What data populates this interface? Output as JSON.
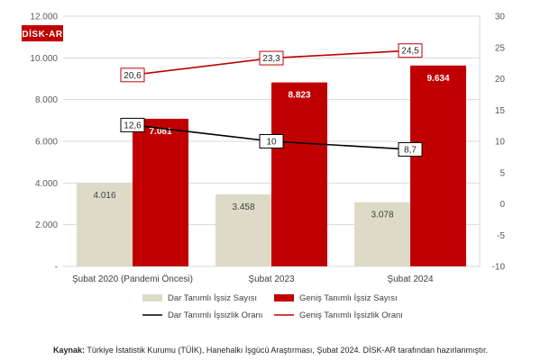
{
  "chart_data": {
    "type": "bar",
    "categories": [
      "Şubat 2020 (Pandemi Öncesi)",
      "Şubat 2023",
      "Şubat 2024"
    ],
    "series": [
      {
        "name": "Dar Tanımlı İşsiz Sayısı",
        "type": "bar",
        "axis": "left",
        "color": "#dddbc8",
        "values": [
          4016,
          3458,
          3078
        ],
        "labels": [
          "4.016",
          "3.458",
          "3.078"
        ]
      },
      {
        "name": "Geniş Tanımlı İşsiz Sayısı",
        "type": "bar",
        "axis": "left",
        "color": "#c00000",
        "values": [
          7081,
          8823,
          9634
        ],
        "labels": [
          "7.081",
          "8.823",
          "9.634"
        ]
      },
      {
        "name": "Dar Tanımlı İşsizlik Oranı",
        "type": "line",
        "axis": "right",
        "color": "#000000",
        "values": [
          12.6,
          10,
          8.7
        ],
        "labels": [
          "12,6",
          "10",
          "8,7"
        ]
      },
      {
        "name": "Geniş Tanımlı İşsizlik Oranı",
        "type": "line",
        "axis": "right",
        "color": "#c00000",
        "values": [
          20.6,
          23.3,
          24.5
        ],
        "labels": [
          "20,6",
          "23,3",
          "24,5"
        ]
      }
    ],
    "y_left": {
      "min": 0,
      "max": 12000,
      "step": 2000,
      "ticks": [
        "-",
        "2.000",
        "4.000",
        "6.000",
        "8.000",
        "10.000",
        "12.000"
      ]
    },
    "y_right": {
      "min": -10,
      "max": 30,
      "step": 5,
      "ticks": [
        "-10",
        "-5",
        "0",
        "5",
        "10",
        "15",
        "20",
        "25",
        "30"
      ]
    },
    "grid": true,
    "legend_position": "bottom"
  },
  "logo_text": "DİSK-AR",
  "source": {
    "prefix": "Kaynak:",
    "text": " Türkiye İstatistik Kurumu (TÜİK), Hanehalkı İşgücü Araştırması, Şubat 2024. DİSK-AR tarafından hazırlanmıştır."
  }
}
